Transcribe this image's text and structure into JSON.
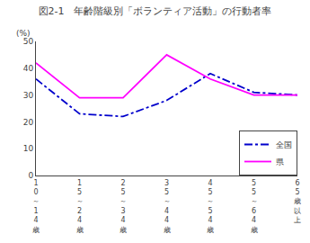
{
  "chart_data": {
    "type": "line",
    "title": "図2-1　年齢階級別「ボランティア活動」の行動者率",
    "ylabel": "(%)",
    "categories": [
      "1\n0\n～\n1\n4\n歳",
      "1\n5\n～\n2\n4\n歳",
      "2\n5\n～\n3\n4\n歳",
      "3\n5\n～\n4\n4\n歳",
      "4\n5\n～\n5\n4\n歳",
      "5\n5\n～\n6\n4\n歳",
      "6\n5\n歳\n以\n上"
    ],
    "series": [
      {
        "name": "全国",
        "color": "#0000cc",
        "line_style": "dashdot",
        "values": [
          36,
          23,
          22,
          28,
          38,
          31,
          30
        ]
      },
      {
        "name": "県",
        "color": "#ff00ff",
        "line_style": "solid",
        "values": [
          42,
          29,
          29,
          45,
          36,
          30,
          30
        ]
      }
    ],
    "ylim": [
      0,
      50
    ],
    "yticks": [
      0,
      10,
      20,
      30,
      40,
      50
    ],
    "grid": false,
    "legend": "lower right"
  }
}
